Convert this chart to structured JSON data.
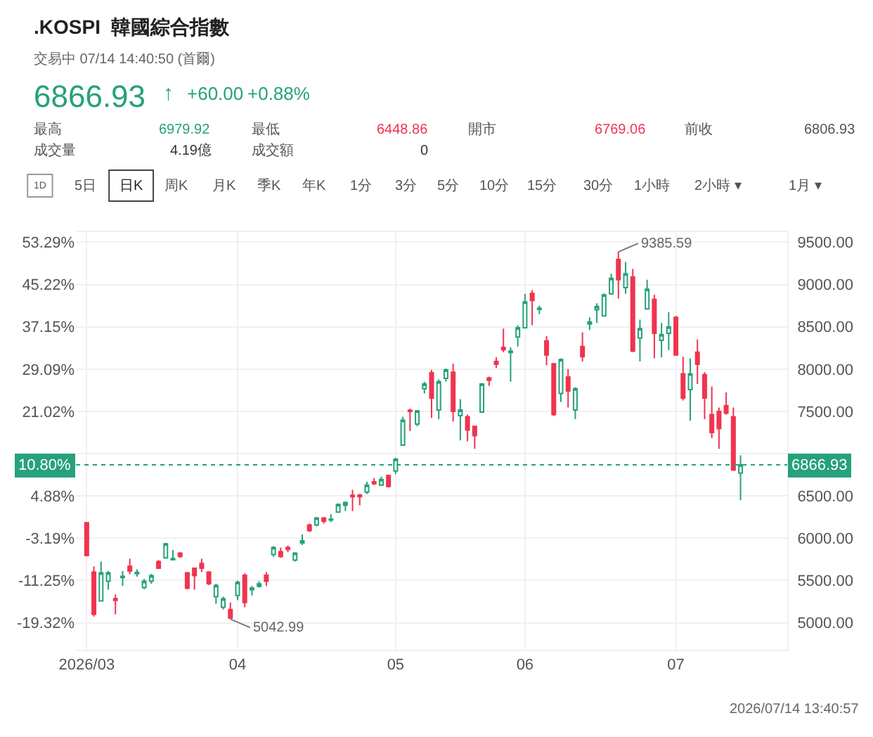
{
  "chart_data": {
    "type": "candlestick",
    "title": ".KOSPI  韓國綜合指數",
    "subtitle": "交易中 07/14 14:40:50 (首爾)",
    "categories": [
      "2026/03",
      null,
      null,
      null,
      null,
      null,
      null,
      null,
      null,
      null,
      null,
      null,
      null,
      null,
      null,
      null,
      null,
      null,
      null,
      null,
      null,
      "04",
      null,
      null,
      null,
      null,
      null,
      null,
      null,
      null,
      null,
      null,
      null,
      null,
      null,
      null,
      null,
      null,
      null,
      null,
      null,
      null,
      null,
      "05",
      null,
      null,
      null,
      null,
      null,
      null,
      null,
      null,
      null,
      null,
      null,
      null,
      null,
      null,
      null,
      null,
      null,
      "06",
      null,
      null,
      null,
      null,
      null,
      null,
      null,
      null,
      null,
      null,
      null,
      null,
      null,
      null,
      null,
      null,
      null,
      null,
      null,
      null,
      "07",
      null,
      null,
      null,
      null,
      null,
      null,
      null,
      null,
      null
    ],
    "ohlc": [
      [
        6183,
        6190,
        5790,
        5795
      ],
      [
        5600,
        5667,
        5073,
        5100
      ],
      [
        5257,
        5723,
        5250,
        5590
      ],
      [
        5490,
        5612,
        5390,
        5590
      ],
      [
        5285,
        5333,
        5100,
        5265
      ],
      [
        5535,
        5612,
        5435,
        5550
      ],
      [
        5667,
        5757,
        5573,
        5612
      ],
      [
        5580,
        5630,
        5545,
        5595
      ],
      [
        5415,
        5518,
        5398,
        5490
      ],
      [
        5490,
        5578,
        5462,
        5557
      ],
      [
        5723,
        5740,
        5640,
        5645
      ],
      [
        5767,
        5945,
        5767,
        5934
      ],
      [
        5745,
        5862,
        5740,
        5760
      ],
      [
        5823,
        5834,
        5767,
        5785
      ],
      [
        5590,
        5595,
        5398,
        5407
      ],
      [
        5645,
        5650,
        5390,
        5557
      ],
      [
        5700,
        5757,
        5600,
        5645
      ],
      [
        5600,
        5610,
        5445,
        5462
      ],
      [
        5307,
        5462,
        5223,
        5440
      ],
      [
        5183,
        5307,
        5157,
        5283
      ],
      [
        5157,
        5240,
        5042.99,
        5057
      ],
      [
        5323,
        5500,
        5267,
        5478
      ],
      [
        5562,
        5585,
        5183,
        5240
      ],
      [
        5390,
        5435,
        5323,
        5410
      ],
      [
        5430,
        5490,
        5415,
        5460
      ],
      [
        5562,
        5600,
        5435,
        5490
      ],
      [
        5807,
        5907,
        5780,
        5890
      ],
      [
        5840,
        5890,
        5767,
        5785
      ],
      [
        5890,
        5912,
        5834,
        5867
      ],
      [
        5740,
        5834,
        5723,
        5823
      ],
      [
        5945,
        6045,
        5920,
        5970
      ],
      [
        6157,
        6173,
        6073,
        6090
      ],
      [
        6157,
        6250,
        6140,
        6240
      ],
      [
        6240,
        6250,
        6173,
        6200
      ],
      [
        6215,
        6283,
        6190,
        6225
      ],
      [
        6307,
        6410,
        6300,
        6400
      ],
      [
        6390,
        6433,
        6320,
        6423
      ],
      [
        6507,
        6573,
        6320,
        6490
      ],
      [
        6510,
        6523,
        6390,
        6490
      ],
      [
        6545,
        6667,
        6523,
        6628
      ],
      [
        6667,
        6712,
        6628,
        6645
      ],
      [
        6628,
        6728,
        6617,
        6695
      ],
      [
        6740,
        6750,
        6600,
        6612
      ],
      [
        6795,
        6950,
        6757,
        6934
      ],
      [
        7100,
        7434,
        7100,
        7395
      ],
      [
        7512,
        7533,
        7267,
        7500
      ],
      [
        7350,
        7517,
        7323,
        7505
      ],
      [
        7767,
        7850,
        7712,
        7823
      ],
      [
        7957,
        7990,
        7423,
        7657
      ],
      [
        7517,
        7878,
        7407,
        7850
      ],
      [
        7890,
        8007,
        7850,
        7990
      ],
      [
        7962,
        8062,
        7378,
        7500
      ],
      [
        7450,
        7645,
        7157,
        7517
      ],
      [
        7434,
        7462,
        7145,
        7278
      ],
      [
        7323,
        7330,
        7057,
        7212
      ],
      [
        7490,
        7834,
        7480,
        7823
      ],
      [
        7895,
        7912,
        7800,
        7867
      ],
      [
        8090,
        8140,
        8012,
        8057
      ],
      [
        8257,
        8478,
        8200,
        8230
      ],
      [
        8195,
        8257,
        7850,
        8212
      ],
      [
        8378,
        8517,
        8267,
        8490
      ],
      [
        8490,
        8890,
        8478,
        8795
      ],
      [
        8895,
        8934,
        8517,
        8812
      ],
      [
        8705,
        8750,
        8650,
        8720
      ],
      [
        8334,
        8390,
        8045,
        8167
      ],
      [
        8062,
        8070,
        7445,
        7462
      ],
      [
        7712,
        8128,
        7612,
        8112
      ],
      [
        7907,
        8000,
        7545,
        7740
      ],
      [
        7517,
        7784,
        7407,
        7767
      ],
      [
        8267,
        8434,
        8090,
        8145
      ],
      [
        8533,
        8612,
        8462,
        8557
      ],
      [
        8700,
        8778,
        8545,
        8740
      ],
      [
        8628,
        8895,
        8620,
        8878
      ],
      [
        8890,
        9128,
        8878,
        9073
      ],
      [
        9295,
        9385.59,
        8834,
        9057
      ],
      [
        8962,
        9267,
        8890,
        9128
      ],
      [
        9090,
        9184,
        8200,
        8212
      ],
      [
        8367,
        8584,
        8090,
        8478
      ],
      [
        8712,
        9057,
        8700,
        8945
      ],
      [
        8823,
        8878,
        8128,
        8423
      ],
      [
        8340,
        8545,
        8140,
        8407
      ],
      [
        8423,
        8673,
        8223,
        8500
      ],
      [
        8612,
        8628,
        8157,
        8167
      ],
      [
        7945,
        8145,
        7628,
        7657
      ],
      [
        7757,
        8128,
        7390,
        7945
      ],
      [
        8200,
        8350,
        7823,
        8057
      ],
      [
        7933,
        7962,
        7407,
        7657
      ],
      [
        7462,
        7795,
        7183,
        7250
      ],
      [
        7500,
        7545,
        7057,
        7295
      ],
      [
        7567,
        7723,
        7462,
        7478
      ],
      [
        7434,
        7545,
        6795,
        6806.93
      ],
      [
        6769.06,
        6979.92,
        6448.86,
        6866.93
      ]
    ],
    "colors": [
      "#f0344f",
      "#f0344f",
      "#26a17b",
      "#26a17b",
      "#f0344f",
      "#26a17b",
      "#f0344f",
      "#26a17b",
      "#26a17b",
      "#26a17b",
      "#f0344f",
      "#26a17b",
      "#26a17b",
      "#f0344f",
      "#f0344f",
      "#f0344f",
      "#f0344f",
      "#f0344f",
      "#26a17b",
      "#26a17b",
      "#f0344f",
      "#26a17b",
      "#f0344f",
      "#26a17b",
      "#26a17b",
      "#f0344f",
      "#26a17b",
      "#f0344f",
      "#f0344f",
      "#26a17b",
      "#26a17b",
      "#f0344f",
      "#26a17b",
      "#f0344f",
      "#26a17b",
      "#26a17b",
      "#26a17b",
      "#f0344f",
      "#f0344f",
      "#26a17b",
      "#f0344f",
      "#26a17b",
      "#f0344f",
      "#26a17b",
      "#26a17b",
      "#f0344f",
      "#26a17b",
      "#26a17b",
      "#f0344f",
      "#26a17b",
      "#26a17b",
      "#f0344f",
      "#26a17b",
      "#f0344f",
      "#f0344f",
      "#26a17b",
      "#f0344f",
      "#f0344f",
      "#f0344f",
      "#26a17b",
      "#26a17b",
      "#26a17b",
      "#f0344f",
      "#26a17b",
      "#f0344f",
      "#f0344f",
      "#26a17b",
      "#f0344f",
      "#26a17b",
      "#f0344f",
      "#26a17b",
      "#26a17b",
      "#26a17b",
      "#26a17b",
      "#f0344f",
      "#26a17b",
      "#f0344f",
      "#26a17b",
      "#26a17b",
      "#f0344f",
      "#26a17b",
      "#26a17b",
      "#f0344f",
      "#f0344f",
      "#26a17b",
      "#f0344f",
      "#f0344f",
      "#f0344f",
      "#f0344f",
      "#f0344f",
      "#f0344f",
      "#26a17b"
    ],
    "ylim": [
      4680,
      9620
    ],
    "yticks": [
      {
        "value": 5000,
        "label": "5000.00"
      },
      {
        "value": 5500,
        "label": "5500.00"
      },
      {
        "value": 6000,
        "label": "6000.00"
      },
      {
        "value": 6500,
        "label": "6500.00"
      },
      {
        "value": 7000,
        "label": null
      },
      {
        "value": 7500,
        "label": "7500.00"
      },
      {
        "value": 8000,
        "label": "8000.00"
      },
      {
        "value": 8500,
        "label": "8500.00"
      },
      {
        "value": 9000,
        "label": "9000.00"
      },
      {
        "value": 9500,
        "label": "9500.00"
      }
    ],
    "y2lim": [
      -24.48,
      55.23
    ],
    "y2ticks": [
      {
        "value": -19.32,
        "label": "-19.32%"
      },
      {
        "value": -11.25,
        "label": "-11.25%"
      },
      {
        "value": -3.19,
        "label": "-3.19%"
      },
      {
        "value": 4.88,
        "label": "4.88%"
      },
      {
        "value": 12.95,
        "label": null
      },
      {
        "value": 21.02,
        "label": "21.02%"
      },
      {
        "value": 29.09,
        "label": "29.09%"
      },
      {
        "value": 37.15,
        "label": "37.15%"
      },
      {
        "value": 45.22,
        "label": "45.22%"
      },
      {
        "value": 53.29,
        "label": "53.29%"
      }
    ],
    "ref_lines": [
      {
        "axis": "y",
        "value": 6866.93,
        "label": "6866.93",
        "color": "#26a17b",
        "line_style": "dotted"
      }
    ],
    "grid": true,
    "annotations": [
      "9385.59",
      "5042.99",
      "10.80%",
      "6866.93",
      "↑",
      "+60.00",
      "+0.88%",
      "最高",
      "6979.92",
      "最低",
      "6448.86",
      "開市",
      "6769.06",
      "前收",
      "6806.93",
      "成交量",
      "4.19億",
      "成交額",
      "0",
      "1D",
      "5日",
      "日K",
      "周K",
      "月K",
      "季K",
      "年K",
      "1分",
      "3分",
      "5分",
      "10分",
      "15分",
      "30分",
      "1小時",
      "2小時 ▾",
      "1月 ▾",
      "2026/07/14 13:40:57"
    ]
  }
}
